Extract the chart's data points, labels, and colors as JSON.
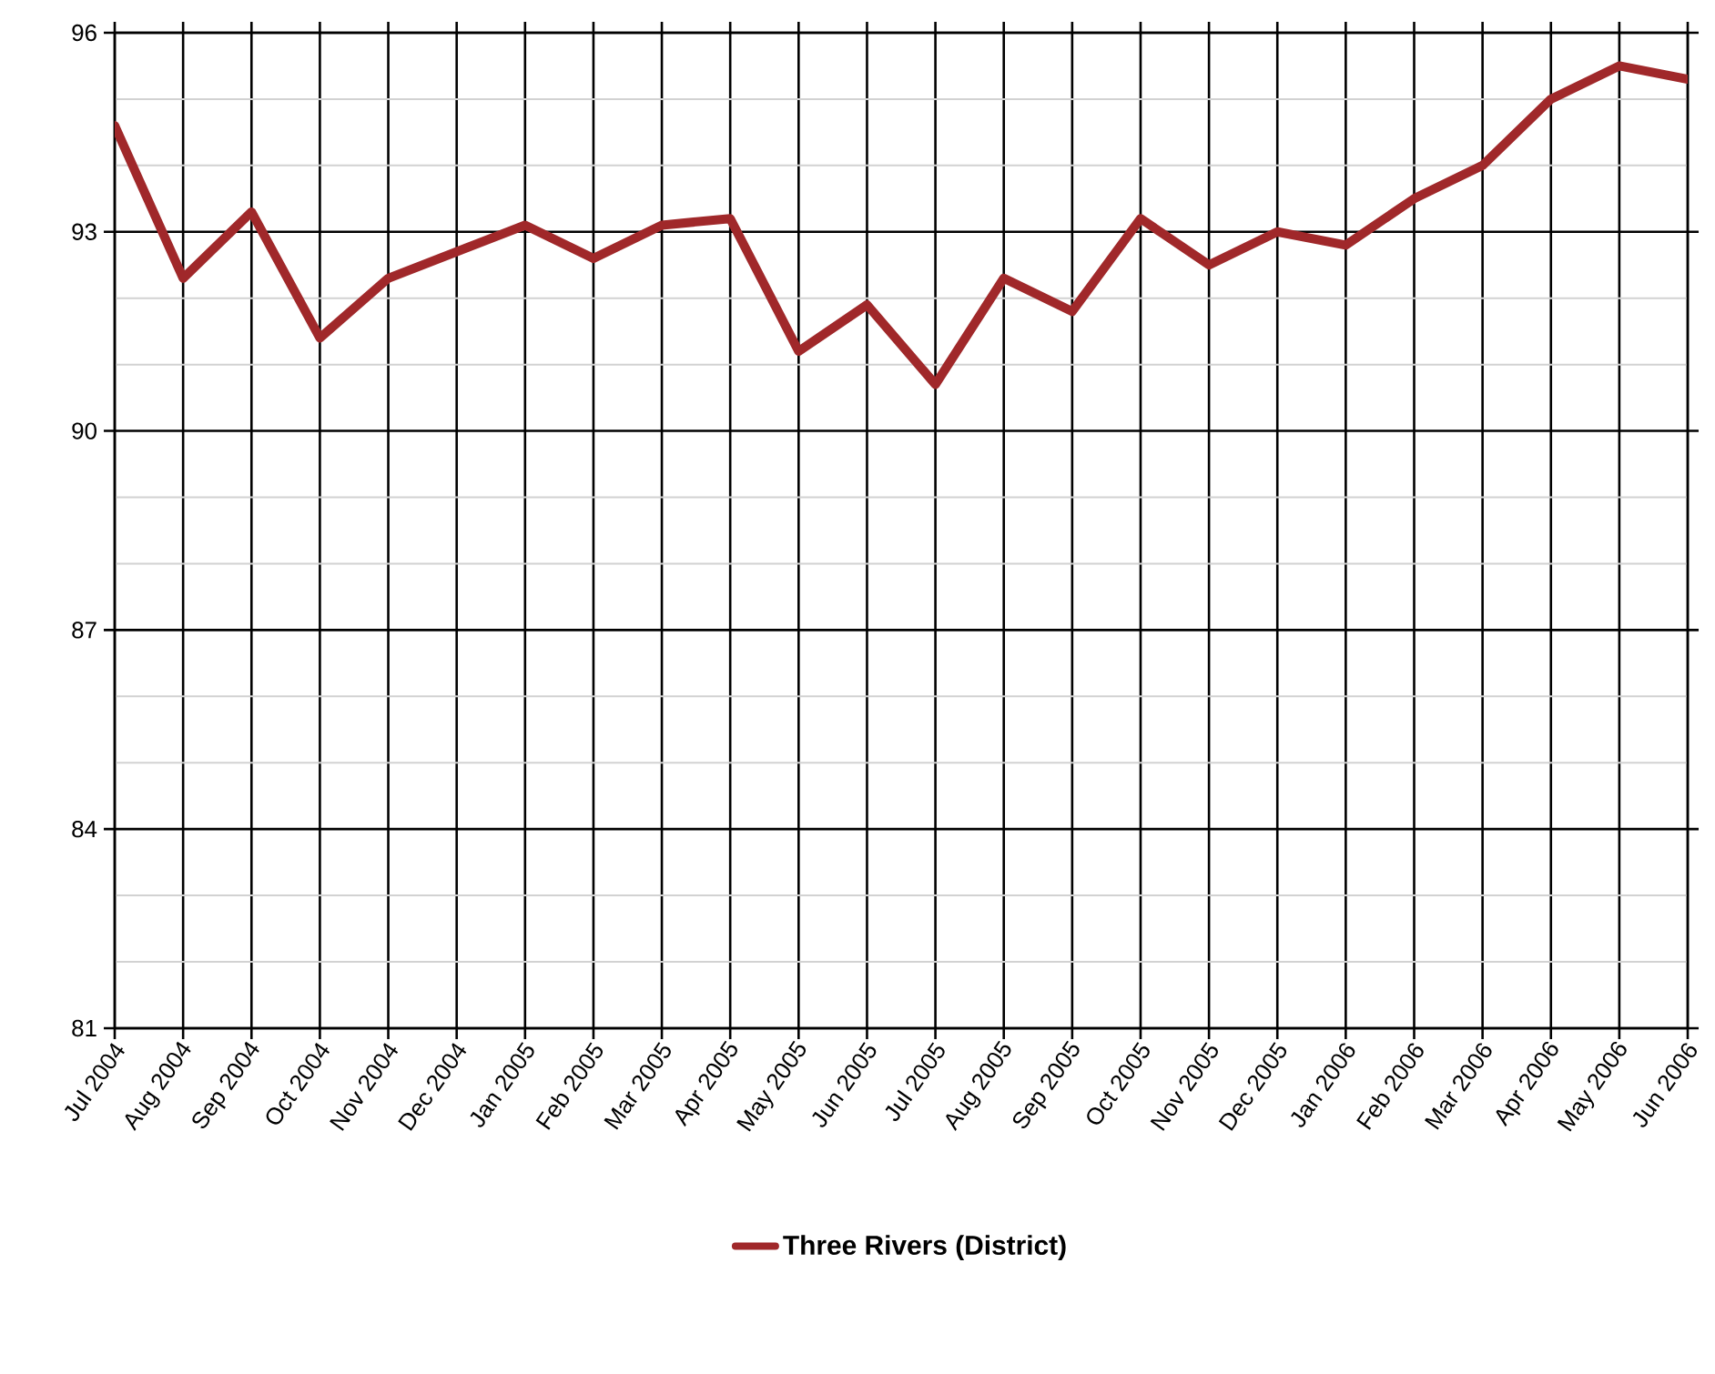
{
  "chart_data": {
    "type": "line",
    "categories": [
      "Jul 2004",
      "Aug 2004",
      "Sep 2004",
      "Oct 2004",
      "Nov 2004",
      "Dec 2004",
      "Jan 2005",
      "Feb 2005",
      "Mar 2005",
      "Apr 2005",
      "May 2005",
      "Jun 2005",
      "Jul 2005",
      "Aug 2005",
      "Sep 2005",
      "Oct 2005",
      "Nov 2005",
      "Dec 2005",
      "Jan 2006",
      "Feb 2006",
      "Mar 2006",
      "Apr 2006",
      "May 2006",
      "Jun 2006"
    ],
    "series": [
      {
        "name": "Three Rivers (District)",
        "color": "#a0282a",
        "values": [
          94.6,
          92.3,
          93.3,
          91.4,
          92.3,
          92.7,
          93.1,
          92.6,
          93.1,
          93.2,
          91.2,
          91.9,
          90.7,
          92.3,
          91.8,
          93.2,
          92.5,
          93.0,
          92.8,
          93.5,
          94.0,
          95.0,
          95.5,
          95.3
        ]
      }
    ],
    "ylim": [
      81,
      96
    ],
    "yticks": [
      81,
      84,
      87,
      90,
      93,
      96
    ],
    "grid": true,
    "legend": "bottom",
    "marker": "none",
    "line_style": "solid"
  }
}
